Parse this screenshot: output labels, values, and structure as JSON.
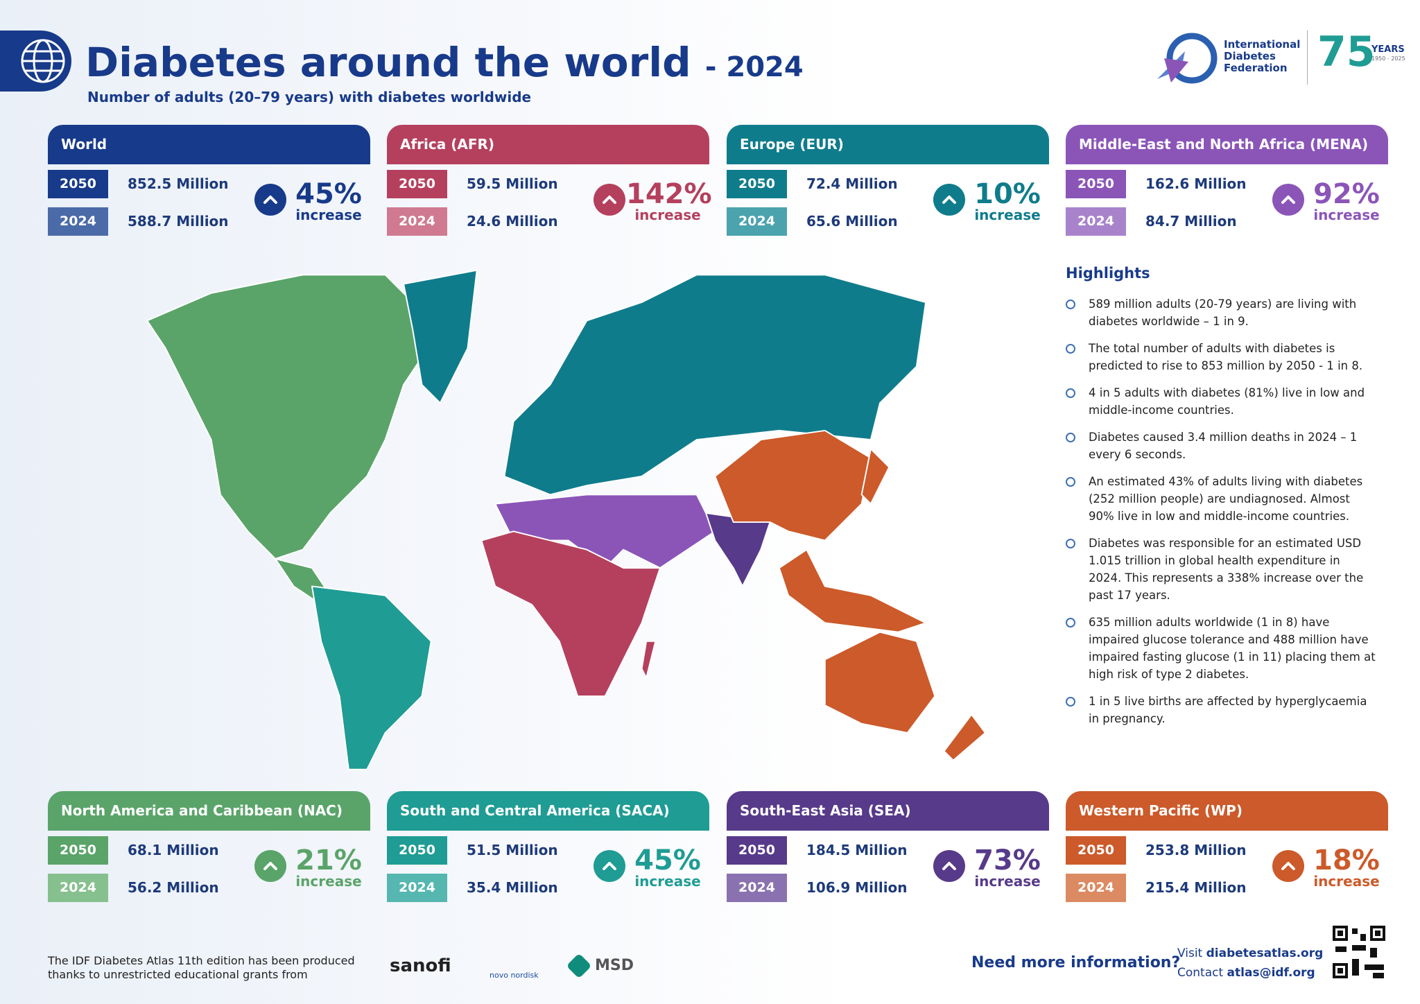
{
  "header": {
    "title": "Diabetes around the world",
    "year": "- 2024",
    "subtitle": "Number of adults (20–79 years) with diabetes worldwide"
  },
  "logo": {
    "name": "International Diabetes Federation",
    "anniversary": "75",
    "years": "YEARS",
    "span": "1950 - 2025"
  },
  "regions": [
    {
      "name": "World",
      "color": "#183a8a",
      "light": "#4b6aa8",
      "rows": [
        {
          "year": "2050",
          "value": "852.5 Million"
        },
        {
          "year": "2024",
          "value": "588.7 Million"
        }
      ],
      "change": "45%",
      "change_label": "increase"
    },
    {
      "name": "Africa (AFR)",
      "color": "#b5405e",
      "light": "#cf7a90",
      "rows": [
        {
          "year": "2050",
          "value": "59.5 Million"
        },
        {
          "year": "2024",
          "value": "24.6 Million"
        }
      ],
      "change": "142%",
      "change_label": "increase"
    },
    {
      "name": "Europe (EUR)",
      "color": "#0f7c8c",
      "light": "#4ba3ae",
      "rows": [
        {
          "year": "2050",
          "value": "72.4 Million"
        },
        {
          "year": "2024",
          "value": "65.6 Million"
        }
      ],
      "change": "10%",
      "change_label": "increase"
    },
    {
      "name": "Middle-East and North Africa (MENA)",
      "color": "#8b55b8",
      "light": "#a883cc",
      "rows": [
        {
          "year": "2050",
          "value": "162.6 Million"
        },
        {
          "year": "2024",
          "value": "84.7 Million"
        }
      ],
      "change": "92%",
      "change_label": "increase"
    },
    {
      "name": "North America and Caribbean (NAC)",
      "color": "#5aa469",
      "light": "#86c08e",
      "rows": [
        {
          "year": "2050",
          "value": "68.1 Million"
        },
        {
          "year": "2024",
          "value": "56.2 Million"
        }
      ],
      "change": "21%",
      "change_label": "increase"
    },
    {
      "name": "South and Central America (SACA)",
      "color": "#1f9c94",
      "light": "#55b7b0",
      "rows": [
        {
          "year": "2050",
          "value": "51.5 Million"
        },
        {
          "year": "2024",
          "value": "35.4 Million"
        }
      ],
      "change": "45%",
      "change_label": "increase"
    },
    {
      "name": "South-East Asia (SEA)",
      "color": "#573a8a",
      "light": "#8a72b0",
      "rows": [
        {
          "year": "2050",
          "value": "184.5 Million"
        },
        {
          "year": "2024",
          "value": "106.9 Million"
        }
      ],
      "change": "73%",
      "change_label": "increase"
    },
    {
      "name": "Western Pacific (WP)",
      "color": "#cc5a2a",
      "light": "#dc8a62",
      "rows": [
        {
          "year": "2050",
          "value": "253.8 Million"
        },
        {
          "year": "2024",
          "value": "215.4 Million"
        }
      ],
      "change": "18%",
      "change_label": "increase"
    }
  ],
  "highlights": {
    "title": "Highlights",
    "items": [
      "589 million adults (20-79 years) are living with diabetes worldwide – 1 in 9.",
      "The total number of adults with diabetes is predicted to rise to 853 million by 2050 - 1 in 8.",
      "4 in 5 adults with diabetes (81%) live in low and middle-income countries.",
      "Diabetes caused 3.4 million deaths in 2024 – 1 every 6 seconds.",
      "An estimated 43% of adults living with diabetes (252 million people) are undiagnosed. Almost 90% live in low and middle-income countries.",
      "Diabetes was responsible for an estimated USD 1.015 trillion in global health expenditure in 2024. This represents a 338% increase over the past 17 years.",
      "635 million adults worldwide (1 in 8) have impaired glucose tolerance and 488 million have impaired fasting glucose (1 in 11) placing them at high risk of type 2 diabetes.",
      "1 in 5 live births are affected by hyperglycaemia in pregnancy."
    ]
  },
  "footer": {
    "grant_text": "The IDF Diabetes Atlas 11th edition has been produced thanks to unrestricted educational grants from",
    "sponsors": [
      "sanofi",
      "novo nordisk",
      "MSD"
    ],
    "question": "Need more information?",
    "visit_label": "Visit",
    "visit": "diabetesatlas.org",
    "contact_label": "Contact",
    "contact": "atlas@idf.org"
  }
}
